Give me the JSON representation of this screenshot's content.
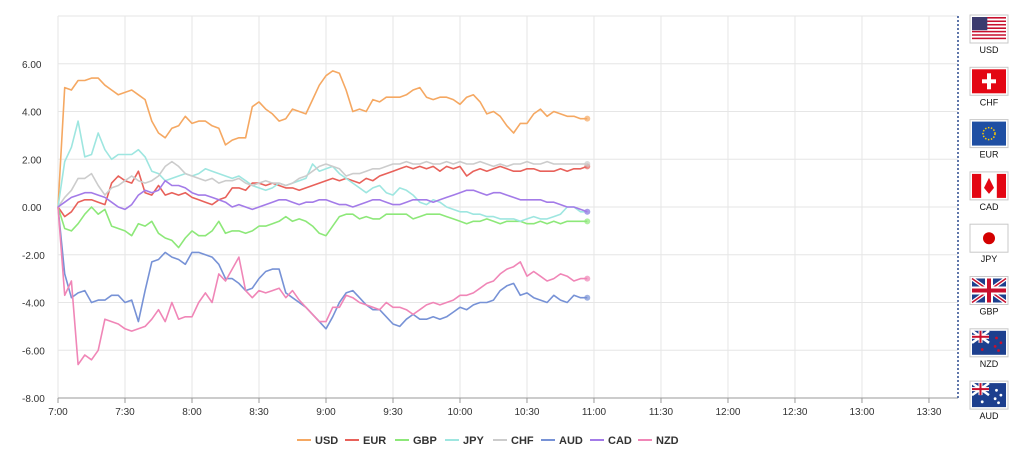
{
  "chart_data": {
    "type": "line",
    "title": "",
    "xlabel": "",
    "ylabel": "",
    "ylim": [
      -8,
      8
    ],
    "y_ticks": [
      "6.00",
      "4.00",
      "2.00",
      "0.00",
      "-2.00",
      "-4.00",
      "-6.00",
      "-8.00"
    ],
    "y_tick_values": [
      6,
      4,
      2,
      0,
      -2,
      -4,
      -6,
      -8
    ],
    "x_ticks": [
      "7:00",
      "7:30",
      "8:00",
      "8:30",
      "9:00",
      "9:30",
      "10:00",
      "10:30",
      "11:00",
      "11:30",
      "12:00",
      "12:30",
      "13:00",
      "13:30"
    ],
    "x_tick_minutes": [
      0,
      30,
      60,
      90,
      120,
      150,
      180,
      210,
      240,
      270,
      300,
      330,
      360,
      390
    ],
    "x_range_minutes": [
      0,
      403
    ],
    "x_step_minutes": 3,
    "grid": true,
    "legend_position": "bottom",
    "series": [
      {
        "name": "USD",
        "color": "#f5a862",
        "values": [
          0,
          5.0,
          4.9,
          5.3,
          5.3,
          5.4,
          5.4,
          5.1,
          4.9,
          4.7,
          4.8,
          4.9,
          4.7,
          4.5,
          3.6,
          3.1,
          2.9,
          3.3,
          3.4,
          3.8,
          3.5,
          3.6,
          3.6,
          3.4,
          3.3,
          2.6,
          2.8,
          2.9,
          2.9,
          4.2,
          4.4,
          4.1,
          3.9,
          3.6,
          3.7,
          4.1,
          4.0,
          3.9,
          4.5,
          5.1,
          5.5,
          5.7,
          5.6,
          4.9,
          4.0,
          4.1,
          4.0,
          4.5,
          4.4,
          4.6,
          4.6,
          4.6,
          4.7,
          4.9,
          5.0,
          4.6,
          4.5,
          4.6,
          4.6,
          4.5,
          4.3,
          4.6,
          4.7,
          4.4,
          3.9,
          4.0,
          3.8,
          3.4,
          3.1,
          3.5,
          3.5,
          3.9,
          4.1,
          3.8,
          4.0,
          3.9,
          3.8,
          3.8,
          3.7,
          3.7
        ]
      },
      {
        "name": "EUR",
        "color": "#e8615a",
        "values": [
          0,
          -0.4,
          -0.2,
          0.2,
          0.3,
          0.3,
          0.2,
          0.1,
          1.0,
          1.3,
          1.1,
          1.0,
          1.5,
          0.6,
          0.5,
          0.9,
          0.5,
          0.6,
          0.5,
          0.6,
          0.4,
          0.3,
          0.2,
          0.1,
          0.3,
          0.4,
          0.8,
          0.8,
          0.7,
          1.0,
          1.0,
          0.9,
          1.0,
          0.9,
          0.8,
          0.8,
          0.7,
          0.8,
          0.9,
          1.0,
          1.1,
          1.2,
          1.1,
          1.2,
          1.1,
          1.0,
          1.2,
          1.1,
          1.3,
          1.4,
          1.5,
          1.6,
          1.7,
          1.6,
          1.7,
          1.6,
          1.7,
          1.5,
          1.7,
          1.6,
          1.7,
          1.3,
          1.5,
          1.6,
          1.5,
          1.6,
          1.7,
          1.6,
          1.5,
          1.5,
          1.6,
          1.6,
          1.5,
          1.5,
          1.5,
          1.6,
          1.5,
          1.6,
          1.6,
          1.7
        ]
      },
      {
        "name": "GBP",
        "color": "#8de879",
        "values": [
          0,
          -0.9,
          -1.0,
          -0.7,
          -0.3,
          0.0,
          -0.3,
          -0.1,
          -0.8,
          -0.9,
          -1.0,
          -1.2,
          -0.7,
          -0.8,
          -0.6,
          -1.1,
          -1.3,
          -1.4,
          -1.7,
          -1.3,
          -1.0,
          -1.2,
          -1.2,
          -1.0,
          -0.6,
          -1.1,
          -1.0,
          -1.0,
          -1.1,
          -1.0,
          -0.8,
          -0.8,
          -0.7,
          -0.6,
          -0.4,
          -0.6,
          -0.5,
          -0.6,
          -0.8,
          -1.1,
          -1.2,
          -0.8,
          -0.4,
          -0.3,
          -0.3,
          -0.5,
          -0.4,
          -0.5,
          -0.5,
          -0.3,
          -0.3,
          -0.3,
          -0.3,
          -0.5,
          -0.4,
          -0.3,
          -0.3,
          -0.3,
          -0.4,
          -0.5,
          -0.6,
          -0.7,
          -0.6,
          -0.6,
          -0.5,
          -0.6,
          -0.7,
          -0.6,
          -0.6,
          -0.6,
          -0.7,
          -0.7,
          -0.6,
          -0.7,
          -0.6,
          -0.7,
          -0.6,
          -0.6,
          -0.6,
          -0.6
        ]
      },
      {
        "name": "JPY",
        "color": "#9ee6e0",
        "values": [
          0,
          1.9,
          2.5,
          3.6,
          2.1,
          2.2,
          3.1,
          2.4,
          2.0,
          2.2,
          2.2,
          2.2,
          2.4,
          2.1,
          1.5,
          1.4,
          1.1,
          1.2,
          1.3,
          1.4,
          1.3,
          1.4,
          1.6,
          1.5,
          1.4,
          1.3,
          1.2,
          1.3,
          1.1,
          0.9,
          0.8,
          0.7,
          0.8,
          1.0,
          0.9,
          1.0,
          1.1,
          1.2,
          1.8,
          1.5,
          1.6,
          1.7,
          1.4,
          1.2,
          1.0,
          0.8,
          0.6,
          0.8,
          0.9,
          0.6,
          0.5,
          0.8,
          0.7,
          0.5,
          0.2,
          0.1,
          0.3,
          0.2,
          0.0,
          -0.1,
          -0.2,
          -0.2,
          -0.3,
          -0.3,
          -0.4,
          -0.4,
          -0.5,
          -0.5,
          -0.5,
          -0.6,
          -0.5,
          -0.4,
          -0.5,
          -0.5,
          -0.4,
          -0.3,
          0.0,
          0.0,
          -0.2,
          -0.2
        ]
      },
      {
        "name": "CHF",
        "color": "#cccccc",
        "values": [
          0,
          0.4,
          0.7,
          1.2,
          1.2,
          1.4,
          0.9,
          0.5,
          0.8,
          0.9,
          1.1,
          1.3,
          1.1,
          1.0,
          1.1,
          1.3,
          1.7,
          1.9,
          1.7,
          1.4,
          1.3,
          1.2,
          1.1,
          1.2,
          1.0,
          1.1,
          1.1,
          1.2,
          1.0,
          0.9,
          1.0,
          1.1,
          1.0,
          1.0,
          0.9,
          1.0,
          1.2,
          1.3,
          1.5,
          1.7,
          1.8,
          1.7,
          1.6,
          1.3,
          1.4,
          1.4,
          1.5,
          1.6,
          1.6,
          1.7,
          1.8,
          1.8,
          1.9,
          1.8,
          1.8,
          1.9,
          1.8,
          1.8,
          1.9,
          1.8,
          1.9,
          1.8,
          1.8,
          1.9,
          1.8,
          1.7,
          1.8,
          1.7,
          1.8,
          1.8,
          1.9,
          1.8,
          1.8,
          1.9,
          1.8,
          1.8,
          1.8,
          1.8,
          1.8,
          1.8
        ]
      },
      {
        "name": "AUD",
        "color": "#7792d6",
        "values": [
          0,
          -2.8,
          -3.8,
          -3.6,
          -3.5,
          -4.0,
          -3.9,
          -3.9,
          -3.7,
          -3.7,
          -4.0,
          -3.9,
          -4.8,
          -3.5,
          -2.3,
          -2.2,
          -1.9,
          -2.1,
          -2.2,
          -2.4,
          -1.9,
          -1.9,
          -2.0,
          -2.1,
          -2.4,
          -3.0,
          -3.0,
          -3.2,
          -3.5,
          -3.4,
          -3.0,
          -2.7,
          -2.6,
          -2.6,
          -3.6,
          -3.8,
          -4.0,
          -4.2,
          -4.5,
          -4.8,
          -5.1,
          -4.6,
          -4.0,
          -3.6,
          -3.5,
          -3.8,
          -4.1,
          -4.3,
          -4.3,
          -4.6,
          -4.9,
          -5.0,
          -4.7,
          -4.5,
          -4.7,
          -4.7,
          -4.6,
          -4.7,
          -4.6,
          -4.4,
          -4.2,
          -4.3,
          -4.1,
          -4.0,
          -4.0,
          -3.9,
          -3.5,
          -3.3,
          -3.2,
          -3.7,
          -3.6,
          -3.8,
          -3.9,
          -4.0,
          -3.7,
          -3.9,
          -4.0,
          -3.7,
          -3.8,
          -3.8
        ]
      },
      {
        "name": "CAD",
        "color": "#a37be8",
        "values": [
          0,
          0.2,
          0.4,
          0.5,
          0.6,
          0.6,
          0.5,
          0.4,
          0.2,
          0.0,
          -0.1,
          0.1,
          0.5,
          0.7,
          0.6,
          0.7,
          1.1,
          0.9,
          0.9,
          0.8,
          0.6,
          0.5,
          0.5,
          0.4,
          0.3,
          0.2,
          0.0,
          0.1,
          0.0,
          -0.1,
          0.0,
          0.1,
          0.2,
          0.3,
          0.3,
          0.2,
          0.1,
          0.2,
          0.2,
          0.3,
          0.3,
          0.2,
          0.1,
          0.1,
          0.0,
          0.1,
          0.2,
          0.3,
          0.3,
          0.2,
          0.1,
          0.1,
          0.2,
          0.3,
          0.3,
          0.3,
          0.2,
          0.3,
          0.4,
          0.5,
          0.6,
          0.7,
          0.7,
          0.6,
          0.5,
          0.6,
          0.6,
          0.5,
          0.4,
          0.3,
          0.3,
          0.3,
          0.3,
          0.2,
          0.2,
          0.1,
          0.0,
          0.0,
          -0.1,
          -0.2
        ]
      },
      {
        "name": "NZD",
        "color": "#f086b7",
        "values": [
          0,
          -3.7,
          -3.1,
          -6.6,
          -6.2,
          -6.4,
          -6.0,
          -4.7,
          -4.8,
          -4.9,
          -5.1,
          -5.2,
          -5.1,
          -5.0,
          -4.7,
          -4.3,
          -4.8,
          -4.0,
          -4.7,
          -4.6,
          -4.6,
          -4.0,
          -3.6,
          -4.0,
          -2.8,
          -3.1,
          -2.6,
          -2.1,
          -3.5,
          -3.8,
          -3.5,
          -3.6,
          -3.5,
          -3.4,
          -3.8,
          -3.5,
          -3.9,
          -4.2,
          -4.5,
          -4.8,
          -4.8,
          -4.2,
          -4.2,
          -3.7,
          -3.8,
          -4.0,
          -4.1,
          -4.2,
          -4.3,
          -4.0,
          -4.2,
          -4.2,
          -4.3,
          -4.5,
          -4.3,
          -4.1,
          -4.0,
          -4.1,
          -4.0,
          -3.9,
          -3.7,
          -3.7,
          -3.6,
          -3.4,
          -3.2,
          -3.1,
          -2.8,
          -2.6,
          -2.5,
          -2.3,
          -2.9,
          -2.7,
          -2.9,
          -3.1,
          -3.0,
          -2.8,
          -2.9,
          -3.1,
          -3.0,
          -3.0
        ]
      }
    ]
  },
  "flags": [
    {
      "code": "USD",
      "icon": "us-flag-icon"
    },
    {
      "code": "CHF",
      "icon": "ch-flag-icon"
    },
    {
      "code": "EUR",
      "icon": "eu-flag-icon"
    },
    {
      "code": "CAD",
      "icon": "ca-flag-icon"
    },
    {
      "code": "JPY",
      "icon": "jp-flag-icon"
    },
    {
      "code": "GBP",
      "icon": "gb-flag-icon"
    },
    {
      "code": "NZD",
      "icon": "nz-flag-icon"
    },
    {
      "code": "AUD",
      "icon": "au-flag-icon"
    }
  ]
}
